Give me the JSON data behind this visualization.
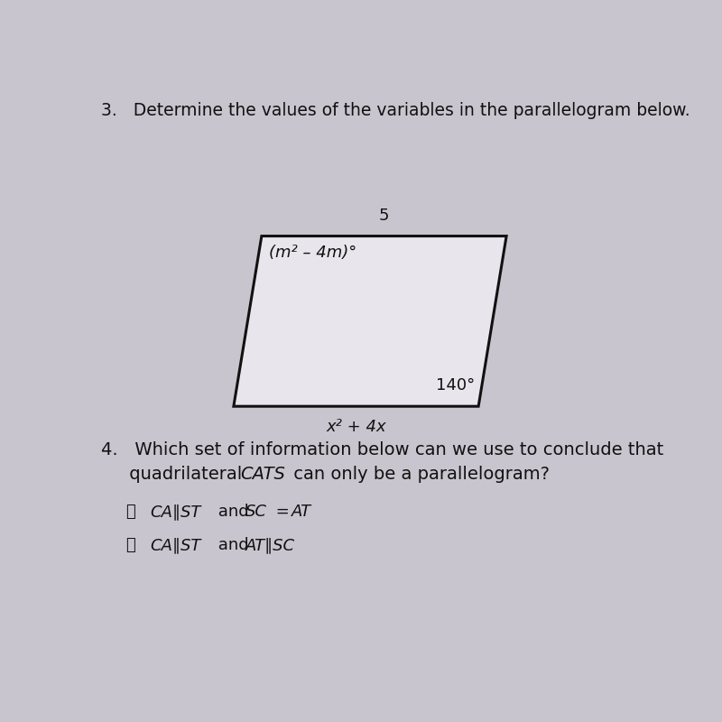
{
  "background_color": "#c8c5ce",
  "parallelogram_face": "#e8e6ec",
  "parallelogram_edge": "#111111",
  "text_color": "#111111",
  "title_q3": "3.   Determine the values of the variables in the parallelogram below.",
  "top_label": "5",
  "angle_tl_label": "(m² – 4m)°",
  "angle_br_label": "140°",
  "bottom_label": "x² + 4x",
  "q4_line1": "4.   Which set of information below can we use to conclude that",
  "q4_line2": "     quadrilateral CATS can only be a parallelogram?",
  "opt_a_circle": "Ⓐ",
  "opt_a_text": " CA∥ST and SC = AT",
  "opt_b_circle": "Ⓑ",
  "opt_b_text": " CA∥ST and AT∥SC",
  "title_fontsize": 13.5,
  "label_fontsize": 13,
  "q4_fontsize": 14,
  "option_fontsize": 13,
  "para_bx": 2.05,
  "para_by": 3.4,
  "para_brx": 5.55,
  "para_bry": 3.4,
  "para_trx": 5.95,
  "para_try": 5.85,
  "para_tlx": 2.45,
  "para_tly": 5.85
}
